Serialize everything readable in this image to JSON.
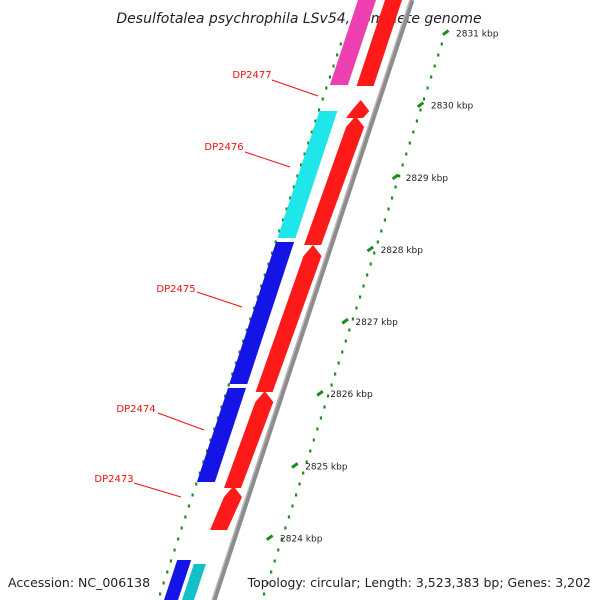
{
  "title": "Desulfotalea psychrophila LSv54, complete genome",
  "footer": {
    "accession": "Accession: NC_006138",
    "topology": "Topology: circular; Length: 3,523,383 bp; Genes: 3,202"
  },
  "kbp_ticks": [
    {
      "kbp": 2824,
      "label": "2824 kbp"
    },
    {
      "kbp": 2825,
      "label": "2825 kbp"
    },
    {
      "kbp": 2826,
      "label": "2826 kbp"
    },
    {
      "kbp": 2827,
      "label": "2827 kbp"
    },
    {
      "kbp": 2828,
      "label": "2828 kbp"
    },
    {
      "kbp": 2829,
      "label": "2829 kbp"
    },
    {
      "kbp": 2830,
      "label": "2830 kbp"
    },
    {
      "kbp": 2831,
      "label": "2831 kbp"
    }
  ],
  "gene_labels": [
    "DP2477",
    "DP2476",
    "DP2475",
    "DP2474",
    "DP2473"
  ],
  "colors": {
    "gene_label": "#ee1111",
    "red_gene": "#ff1a1a",
    "blue_feature": "#1414e6",
    "cyan_feature": "#1ee6ea",
    "magenta_feature": "#ee3fb0",
    "backbone": "#8c8c8c",
    "gc_marker": "#1e8a1e"
  },
  "icons": {
    "red_gene": "arrow-shaped gene block",
    "backbone": "grey genome backbone line"
  }
}
